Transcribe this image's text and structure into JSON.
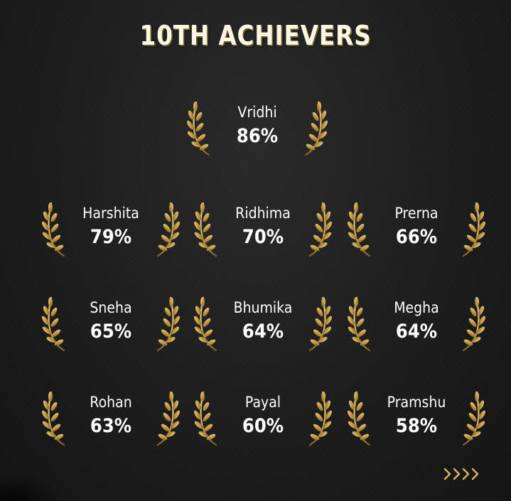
{
  "title": "10TH ACHIEVERS",
  "colors": {
    "background": "#1c1c1c",
    "gold": "#c9a04a",
    "text": "#ffffff"
  },
  "top_achiever": {
    "name": "Vridhi",
    "score": "86%"
  },
  "achievers": [
    {
      "name": "Harshita",
      "score": "79%"
    },
    {
      "name": "Ridhima",
      "score": "70%"
    },
    {
      "name": "Prerna",
      "score": "66%"
    },
    {
      "name": "Sneha",
      "score": "65%"
    },
    {
      "name": "Bhumika",
      "score": "64%"
    },
    {
      "name": "Megha",
      "score": "64%"
    },
    {
      "name": "Rohan",
      "score": "63%"
    },
    {
      "name": "Payal",
      "score": "60%"
    },
    {
      "name": "Pramshu",
      "score": "58%"
    }
  ],
  "icons": {
    "laurel": "laurel-wreath-icon",
    "next": "chevrons-right-icon"
  }
}
